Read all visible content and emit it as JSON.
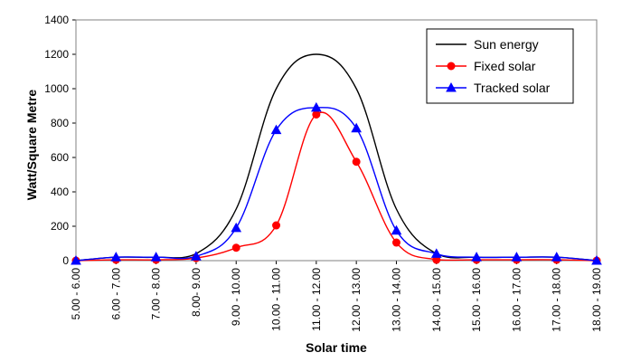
{
  "chart_data": {
    "type": "line",
    "title": "",
    "xlabel": "Solar time",
    "ylabel": "Watt/Square Metre",
    "ylim": [
      0,
      1400
    ],
    "yticks": [
      "0",
      "200",
      "400",
      "600",
      "800",
      "1000",
      "1200",
      "1400"
    ],
    "categories": [
      "5.00 - 6.00",
      "6.00 - 7.00",
      "7.00 - 8.00",
      "8.00- 9.00",
      "9.00 - 10.00",
      "10.00 - 11.00",
      "11.00 - 12.00",
      "12.00 - 13.00",
      "13.00 - 14.00",
      "14.00 - 15.00",
      "15.00 - 16.00",
      "16.00 - 17.00",
      "17.00 - 18.00",
      "18.00 - 19.00"
    ],
    "grid": false,
    "legend_position": "top-right",
    "series": [
      {
        "name": "Sun energy",
        "color": "#000000",
        "marker": "none",
        "values": [
          0,
          20,
          20,
          40,
          300,
          1000,
          1200,
          1000,
          300,
          40,
          20,
          20,
          20,
          0
        ]
      },
      {
        "name": "Fixed solar",
        "color": "#ff0000",
        "marker": "circle",
        "values": [
          0,
          5,
          5,
          15,
          75,
          205,
          850,
          575,
          105,
          5,
          5,
          5,
          5,
          0
        ]
      },
      {
        "name": "Tracked solar",
        "color": "#0000ff",
        "marker": "triangle",
        "values": [
          0,
          20,
          20,
          25,
          190,
          760,
          890,
          770,
          175,
          40,
          20,
          20,
          20,
          0
        ]
      }
    ]
  }
}
